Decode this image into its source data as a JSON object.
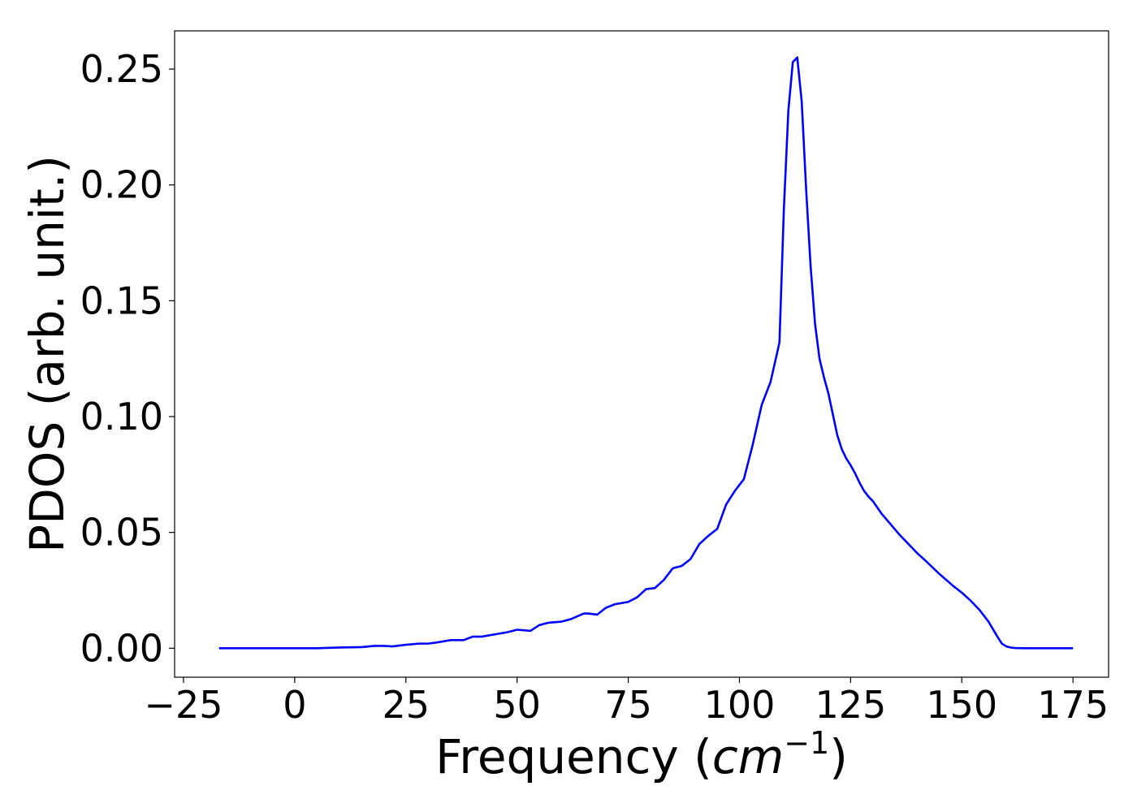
{
  "chart_data": {
    "type": "line",
    "xlabel": "Frequency",
    "xlabel_unit_base": "cm",
    "xlabel_unit_exp": "−1",
    "ylabel": "PDOS (arb. unit.)",
    "xlim": [
      -27,
      183
    ],
    "ylim": [
      -0.0125,
      0.2665
    ],
    "x_ticks": [
      -25,
      0,
      25,
      50,
      75,
      100,
      125,
      150,
      175
    ],
    "x_tick_labels": [
      "−25",
      "0",
      "25",
      "50",
      "75",
      "100",
      "125",
      "150",
      "175"
    ],
    "y_ticks": [
      0.0,
      0.05,
      0.1,
      0.15,
      0.2,
      0.25
    ],
    "y_tick_labels": [
      "0.00",
      "0.05",
      "0.10",
      "0.15",
      "0.20",
      "0.25"
    ],
    "grid": false,
    "legend": "none",
    "series": [
      {
        "color": "#0000ff",
        "x": [
          -17,
          -10,
          0,
          5,
          10,
          15,
          18,
          20,
          22,
          25,
          28,
          30,
          32,
          35,
          37,
          38,
          40,
          42,
          45,
          48,
          50,
          53,
          55,
          57,
          60,
          62,
          65,
          66,
          68,
          70,
          72,
          75,
          77,
          79,
          81,
          83,
          85,
          87,
          89,
          91,
          93,
          95,
          97,
          99,
          101,
          103,
          105,
          107,
          109,
          110,
          111,
          112,
          113,
          114,
          115,
          116,
          117,
          118,
          119,
          120,
          121,
          122,
          123,
          124,
          125,
          126,
          127,
          128,
          129,
          130,
          132,
          134,
          136,
          138,
          140,
          142,
          145,
          148,
          150,
          152,
          154,
          156,
          158,
          159,
          160,
          161,
          162,
          164,
          168,
          175
        ],
        "values": [
          0.0,
          0.0,
          0.0,
          0.0,
          0.0003,
          0.0005,
          0.001,
          0.001,
          0.0008,
          0.0015,
          0.002,
          0.002,
          0.0025,
          0.0035,
          0.0035,
          0.0035,
          0.005,
          0.005,
          0.006,
          0.007,
          0.008,
          0.0075,
          0.01,
          0.011,
          0.0115,
          0.0125,
          0.015,
          0.015,
          0.0145,
          0.0175,
          0.019,
          0.02,
          0.022,
          0.0255,
          0.026,
          0.0295,
          0.0345,
          0.0355,
          0.0385,
          0.045,
          0.0485,
          0.0515,
          0.062,
          0.068,
          0.073,
          0.088,
          0.105,
          0.115,
          0.132,
          0.19,
          0.232,
          0.253,
          0.255,
          0.236,
          0.198,
          0.165,
          0.14,
          0.125,
          0.117,
          0.11,
          0.101,
          0.092,
          0.086,
          0.082,
          0.079,
          0.0755,
          0.0715,
          0.068,
          0.0655,
          0.0635,
          0.058,
          0.0535,
          0.049,
          0.045,
          0.041,
          0.0375,
          0.032,
          0.027,
          0.024,
          0.0205,
          0.0165,
          0.0115,
          0.005,
          0.002,
          0.0008,
          0.0003,
          0.0001,
          0.0,
          0.0,
          0.0
        ]
      }
    ]
  }
}
